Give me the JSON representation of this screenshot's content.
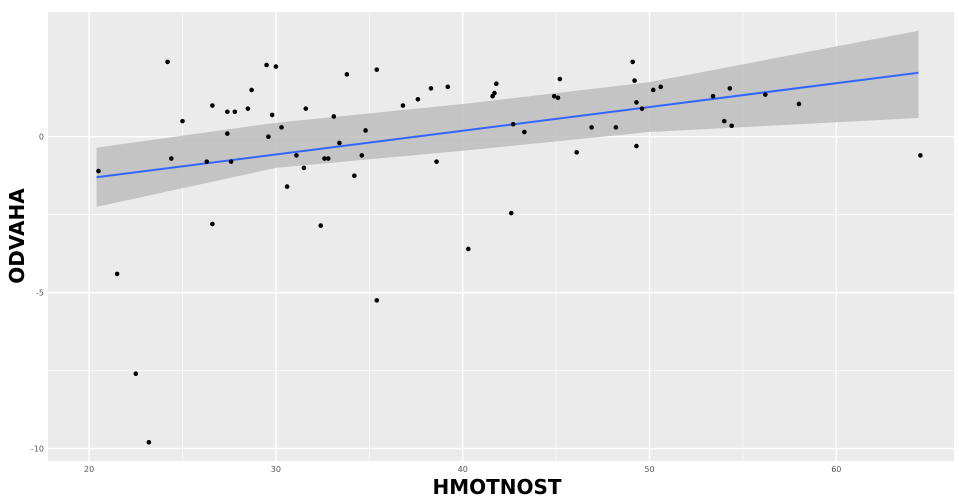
{
  "chart_data": {
    "type": "scatter",
    "title": "",
    "xlabel": "HMOTNOST",
    "ylabel": "ODVAHA",
    "xlim": [
      17.8,
      66.3
    ],
    "ylim": [
      -10.4,
      4.0
    ],
    "x_ticks": [
      20,
      30,
      40,
      50,
      60
    ],
    "y_ticks": [
      -10,
      -5,
      0
    ],
    "x_tick_labels": [
      "20",
      "30",
      "40",
      "50",
      "60"
    ],
    "y_tick_labels": [
      "-10",
      "-5",
      "0"
    ],
    "grid": true,
    "legend": "none",
    "colors": {
      "panel": "#ebebeb",
      "grid_major": "#ffffff",
      "point": "#000000",
      "fit_line": "#3366ff",
      "confidence_band": "#bdbdbd"
    },
    "points": [
      {
        "x": 20.5,
        "y": -1.1
      },
      {
        "x": 21.5,
        "y": -4.4
      },
      {
        "x": 22.5,
        "y": -7.6
      },
      {
        "x": 23.2,
        "y": -9.8
      },
      {
        "x": 24.2,
        "y": 2.4
      },
      {
        "x": 24.4,
        "y": -0.7
      },
      {
        "x": 25.0,
        "y": 0.5
      },
      {
        "x": 26.3,
        "y": -0.8
      },
      {
        "x": 26.6,
        "y": 1.0
      },
      {
        "x": 26.6,
        "y": -2.8
      },
      {
        "x": 27.4,
        "y": 0.8
      },
      {
        "x": 27.4,
        "y": 0.1
      },
      {
        "x": 27.6,
        "y": -0.8
      },
      {
        "x": 27.8,
        "y": 0.8
      },
      {
        "x": 28.5,
        "y": 0.9
      },
      {
        "x": 28.7,
        "y": 1.5
      },
      {
        "x": 29.5,
        "y": 2.3
      },
      {
        "x": 29.6,
        "y": 0.0
      },
      {
        "x": 29.8,
        "y": 0.7
      },
      {
        "x": 30.0,
        "y": 2.25
      },
      {
        "x": 30.3,
        "y": 0.3
      },
      {
        "x": 30.6,
        "y": -1.6
      },
      {
        "x": 31.1,
        "y": -0.6
      },
      {
        "x": 31.5,
        "y": -1.0
      },
      {
        "x": 31.6,
        "y": 0.9
      },
      {
        "x": 32.4,
        "y": -2.85
      },
      {
        "x": 32.6,
        "y": -0.7
      },
      {
        "x": 32.8,
        "y": -0.7
      },
      {
        "x": 33.1,
        "y": 0.65
      },
      {
        "x": 33.4,
        "y": -0.2
      },
      {
        "x": 33.8,
        "y": 2.0
      },
      {
        "x": 34.2,
        "y": -1.25
      },
      {
        "x": 34.6,
        "y": -0.6
      },
      {
        "x": 34.8,
        "y": 0.2
      },
      {
        "x": 35.4,
        "y": 2.15
      },
      {
        "x": 35.4,
        "y": -5.25
      },
      {
        "x": 36.8,
        "y": 1.0
      },
      {
        "x": 37.6,
        "y": 1.2
      },
      {
        "x": 38.3,
        "y": 1.55
      },
      {
        "x": 38.6,
        "y": -0.8
      },
      {
        "x": 39.2,
        "y": 1.6
      },
      {
        "x": 40.3,
        "y": -3.6
      },
      {
        "x": 41.6,
        "y": 1.3
      },
      {
        "x": 41.7,
        "y": 1.4
      },
      {
        "x": 41.8,
        "y": 1.7
      },
      {
        "x": 42.6,
        "y": -2.45
      },
      {
        "x": 42.7,
        "y": 0.4
      },
      {
        "x": 43.3,
        "y": 0.15
      },
      {
        "x": 44.9,
        "y": 1.3
      },
      {
        "x": 45.1,
        "y": 1.25
      },
      {
        "x": 45.2,
        "y": 1.85
      },
      {
        "x": 46.1,
        "y": -0.5
      },
      {
        "x": 46.9,
        "y": 0.3
      },
      {
        "x": 48.2,
        "y": 0.3
      },
      {
        "x": 49.1,
        "y": 2.4
      },
      {
        "x": 49.2,
        "y": 1.8
      },
      {
        "x": 49.3,
        "y": 1.1
      },
      {
        "x": 49.3,
        "y": -0.3
      },
      {
        "x": 49.6,
        "y": 0.9
      },
      {
        "x": 50.2,
        "y": 1.5
      },
      {
        "x": 50.6,
        "y": 1.6
      },
      {
        "x": 53.4,
        "y": 1.3
      },
      {
        "x": 54.0,
        "y": 0.5
      },
      {
        "x": 54.3,
        "y": 1.55
      },
      {
        "x": 54.4,
        "y": 0.35
      },
      {
        "x": 56.2,
        "y": 1.35
      },
      {
        "x": 58.0,
        "y": 1.05
      },
      {
        "x": 64.5,
        "y": -0.6
      }
    ],
    "fit_line": {
      "x": [
        20.4,
        64.4
      ],
      "y": [
        -1.3,
        2.05
      ]
    },
    "confidence_band": {
      "x": [
        20.4,
        30,
        40,
        50,
        64.4
      ],
      "upper": [
        -0.35,
        0.45,
        1.05,
        1.75,
        3.4
      ],
      "lower": [
        -2.25,
        -1.0,
        -0.45,
        0.15,
        0.6
      ]
    }
  }
}
